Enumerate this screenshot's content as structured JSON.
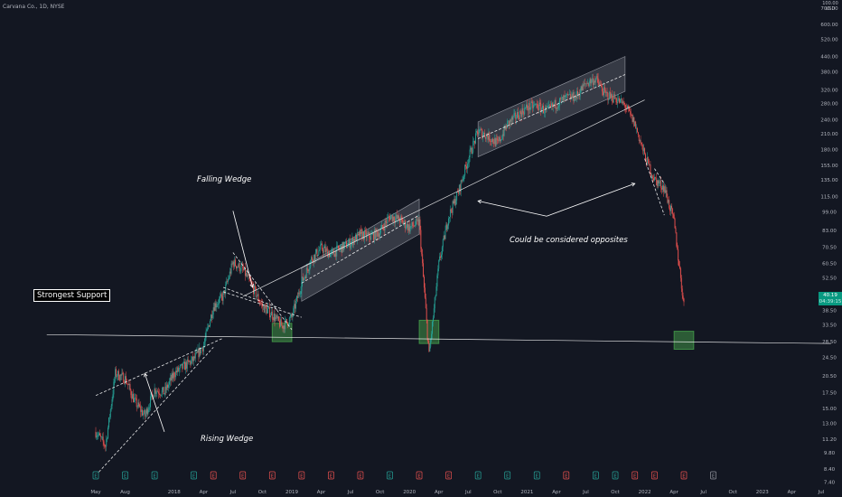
{
  "symbol_title": "Carvana Co., 1D, NYSE",
  "currency": {
    "label": "100.00",
    "unit": "USD"
  },
  "price_label": "40.19",
  "countdown_label": "04:39:15",
  "annotations": {
    "falling_wedge": "Falling Wedge",
    "rising_wedge": "Rising Wedge",
    "opposites": "Could be considered opposites",
    "support": "Strongest Support"
  },
  "colors": {
    "background": "#131722",
    "up": "#26a69a",
    "down": "#ef5350",
    "support_zone": "#4caf50",
    "channel_fill": "#787b86",
    "lines": "#ffffff",
    "axis_text": "#b2b5be"
  },
  "chart_data": {
    "type": "candlestick",
    "y_scale": "log",
    "ylim": [
      7.0,
      700.0
    ],
    "yticks": [
      7.4,
      8.4,
      9.8,
      11.2,
      13.0,
      15.0,
      17.5,
      20.5,
      24.5,
      28.5,
      33.5,
      38.5,
      44.5,
      52.5,
      60.5,
      70.5,
      83.0,
      99.0,
      115.0,
      135.0,
      155.0,
      180.0,
      210.0,
      240.0,
      280.0,
      320.0,
      380.0,
      440.0,
      520.0,
      600.0,
      700.0
    ],
    "x_ticks": [
      "May",
      "Aug",
      "2018",
      "Apr",
      "Jul",
      "Oct",
      "2019",
      "Apr",
      "Jul",
      "Oct",
      "2020",
      "Apr",
      "Jul",
      "Oct",
      "2021",
      "Apr",
      "Jul",
      "Oct",
      "2022",
      "Apr",
      "Jul",
      "Oct",
      "2023",
      "Apr",
      "Jul"
    ],
    "x_tick_months": [
      "2017-05",
      "2017-08",
      "2018-01",
      "2018-04",
      "2018-07",
      "2018-10",
      "2019-01",
      "2019-04",
      "2019-07",
      "2019-10",
      "2020-01",
      "2020-04",
      "2020-07",
      "2020-10",
      "2021-01",
      "2021-04",
      "2021-07",
      "2021-10",
      "2022-01",
      "2022-04",
      "2022-07",
      "2022-10",
      "2023-01",
      "2023-04",
      "2023-07"
    ],
    "price_path": [
      [
        "2017-05",
        12.0
      ],
      [
        "2017-06",
        10.5
      ],
      [
        "2017-07",
        21.0
      ],
      [
        "2017-08",
        20.0
      ],
      [
        "2017-09",
        16.0
      ],
      [
        "2017-10",
        14.0
      ],
      [
        "2017-11",
        18.0
      ],
      [
        "2017-12",
        17.5
      ],
      [
        "2018-01",
        21.0
      ],
      [
        "2018-02",
        22.5
      ],
      [
        "2018-03",
        24.0
      ],
      [
        "2018-04",
        27.5
      ],
      [
        "2018-05",
        40.0
      ],
      [
        "2018-06",
        44.0
      ],
      [
        "2018-07",
        61.0
      ],
      [
        "2018-08",
        57.0
      ],
      [
        "2018-09",
        48.0
      ],
      [
        "2018-10",
        40.0
      ],
      [
        "2018-11",
        37.0
      ],
      [
        "2018-12",
        33.0
      ],
      [
        "2019-01",
        36.0
      ],
      [
        "2019-02",
        50.0
      ],
      [
        "2019-03",
        63.0
      ],
      [
        "2019-04",
        70.0
      ],
      [
        "2019-05",
        66.0
      ],
      [
        "2019-06",
        70.0
      ],
      [
        "2019-07",
        74.0
      ],
      [
        "2019-08",
        80.0
      ],
      [
        "2019-09",
        78.0
      ],
      [
        "2019-10",
        82.0
      ],
      [
        "2019-11",
        95.0
      ],
      [
        "2019-12",
        92.0
      ],
      [
        "2020-01",
        85.0
      ],
      [
        "2020-02",
        90.0
      ],
      [
        "2020-03",
        25.0
      ],
      [
        "2020-04",
        60.0
      ],
      [
        "2020-05",
        95.0
      ],
      [
        "2020-06",
        120.0
      ],
      [
        "2020-07",
        165.0
      ],
      [
        "2020-08",
        215.0
      ],
      [
        "2020-09",
        205.0
      ],
      [
        "2020-10",
        190.0
      ],
      [
        "2020-11",
        230.0
      ],
      [
        "2020-12",
        250.0
      ],
      [
        "2021-01",
        270.0
      ],
      [
        "2021-02",
        275.0
      ],
      [
        "2021-03",
        260.0
      ],
      [
        "2021-04",
        280.0
      ],
      [
        "2021-05",
        295.0
      ],
      [
        "2021-06",
        300.0
      ],
      [
        "2021-07",
        340.0
      ],
      [
        "2021-08",
        355.0
      ],
      [
        "2021-09",
        305.0
      ],
      [
        "2021-10",
        295.0
      ],
      [
        "2021-11",
        275.0
      ],
      [
        "2021-12",
        230.0
      ],
      [
        "2022-01",
        170.0
      ],
      [
        "2022-02",
        135.0
      ],
      [
        "2022-03",
        125.0
      ],
      [
        "2022-04",
        90.0
      ],
      [
        "2022-05",
        40.19
      ]
    ],
    "last_price": 40.19,
    "trendlines": [
      {
        "name": "horizontal-support",
        "from": [
          "2016-12",
          30.5
        ],
        "to": [
          "2023-08",
          28.0
        ]
      },
      {
        "name": "long-rising-trendline",
        "from": [
          "2018-08",
          44.0
        ],
        "to": [
          "2022-01",
          290.0
        ]
      },
      {
        "name": "rising-wedge-upper",
        "from": [
          "2017-05",
          17.0
        ],
        "to": [
          "2018-06",
          29.5
        ],
        "dashed": true
      },
      {
        "name": "rising-wedge-lower",
        "from": [
          "2017-05",
          7.9
        ],
        "to": [
          "2018-05",
          27.0
        ],
        "dashed": true
      },
      {
        "name": "falling-wedge-upper",
        "from": [
          "2018-07",
          67.0
        ],
        "to": [
          "2019-01",
          32.0
        ],
        "dashed": true
      },
      {
        "name": "falling-wedge-lower",
        "from": [
          "2018-06",
          46.0
        ],
        "to": [
          "2019-02",
          36.0
        ],
        "dashed": true
      },
      {
        "name": "falling-wedge-top",
        "from": [
          "2018-06",
          48.0
        ],
        "to": [
          "2018-12",
          39.0
        ],
        "dashed": true
      },
      {
        "name": "channel-2021-mid",
        "from": [
          "2020-08",
          200.0
        ],
        "to": [
          "2021-11",
          370.0
        ],
        "dashed": true
      },
      {
        "name": "channel-2019-mid",
        "from": [
          "2019-02",
          50.0
        ],
        "to": [
          "2020-02",
          96.0
        ],
        "dashed": true
      },
      {
        "name": "drop-2022",
        "from": [
          "2022-01",
          165.0
        ],
        "to": [
          "2022-03",
          96.0
        ],
        "dashed": true
      },
      {
        "name": "drop-2022-b",
        "from": [
          "2022-02",
          150.0
        ],
        "to": [
          "2022-03",
          130.0
        ],
        "dashed": true
      }
    ],
    "channels": [
      {
        "name": "channel-2019",
        "from": [
          "2019-02",
          58.0,
          42.0
        ],
        "to": [
          "2020-02",
          112.0,
          80.0
        ]
      },
      {
        "name": "channel-2021",
        "from": [
          "2020-08",
          235.0,
          168.0
        ],
        "to": [
          "2021-11",
          440.0,
          315.0
        ]
      }
    ],
    "support_zones": [
      {
        "name": "support-zone-2019",
        "x": [
          "2018-11",
          "2019-01"
        ],
        "y": [
          28.5,
          34.0
        ]
      },
      {
        "name": "support-zone-2020",
        "x": [
          "2020-02",
          "2020-04"
        ],
        "y": [
          28.0,
          35.0
        ]
      },
      {
        "name": "support-zone-2022",
        "x": [
          "2022-04",
          "2022-06"
        ],
        "y": [
          26.5,
          31.5
        ]
      }
    ],
    "arrows": [
      {
        "name": "falling-wedge-arrow",
        "from": [
          "2018-07",
          100.0
        ],
        "to": [
          "2018-09",
          48.0
        ]
      },
      {
        "name": "rising-wedge-arrow",
        "from": [
          "2017-12",
          12.0
        ],
        "to": [
          "2017-10",
          21.0
        ]
      },
      {
        "name": "opposites-arrow-left",
        "from": [
          "2021-03",
          95.0
        ],
        "to": [
          "2020-08",
          110.0
        ]
      },
      {
        "name": "opposites-arrow-right",
        "from": [
          "2021-03",
          95.0
        ],
        "to": [
          "2021-12",
          130.0
        ]
      }
    ],
    "events": [
      {
        "date": "2017-05",
        "kind": "dividend"
      },
      {
        "date": "2017-08",
        "kind": "dividend"
      },
      {
        "date": "2017-11",
        "kind": "dividend"
      },
      {
        "date": "2018-03",
        "kind": "dividend"
      },
      {
        "date": "2018-05",
        "kind": "earnings"
      },
      {
        "date": "2018-08",
        "kind": "earnings"
      },
      {
        "date": "2018-11",
        "kind": "earnings"
      },
      {
        "date": "2019-02",
        "kind": "earnings"
      },
      {
        "date": "2019-05",
        "kind": "earnings"
      },
      {
        "date": "2019-08",
        "kind": "earnings"
      },
      {
        "date": "2019-11",
        "kind": "dividend"
      },
      {
        "date": "2020-02",
        "kind": "earnings"
      },
      {
        "date": "2020-05",
        "kind": "earnings"
      },
      {
        "date": "2020-08",
        "kind": "dividend"
      },
      {
        "date": "2020-11",
        "kind": "dividend"
      },
      {
        "date": "2021-02",
        "kind": "dividend"
      },
      {
        "date": "2021-05",
        "kind": "earnings"
      },
      {
        "date": "2021-08",
        "kind": "dividend"
      },
      {
        "date": "2021-10",
        "kind": "dividend"
      },
      {
        "date": "2021-12",
        "kind": "earnings"
      },
      {
        "date": "2022-02",
        "kind": "earnings"
      },
      {
        "date": "2022-05",
        "kind": "earnings"
      },
      {
        "date": "2022-08",
        "kind": "upcoming"
      }
    ],
    "event_letter": "E"
  }
}
